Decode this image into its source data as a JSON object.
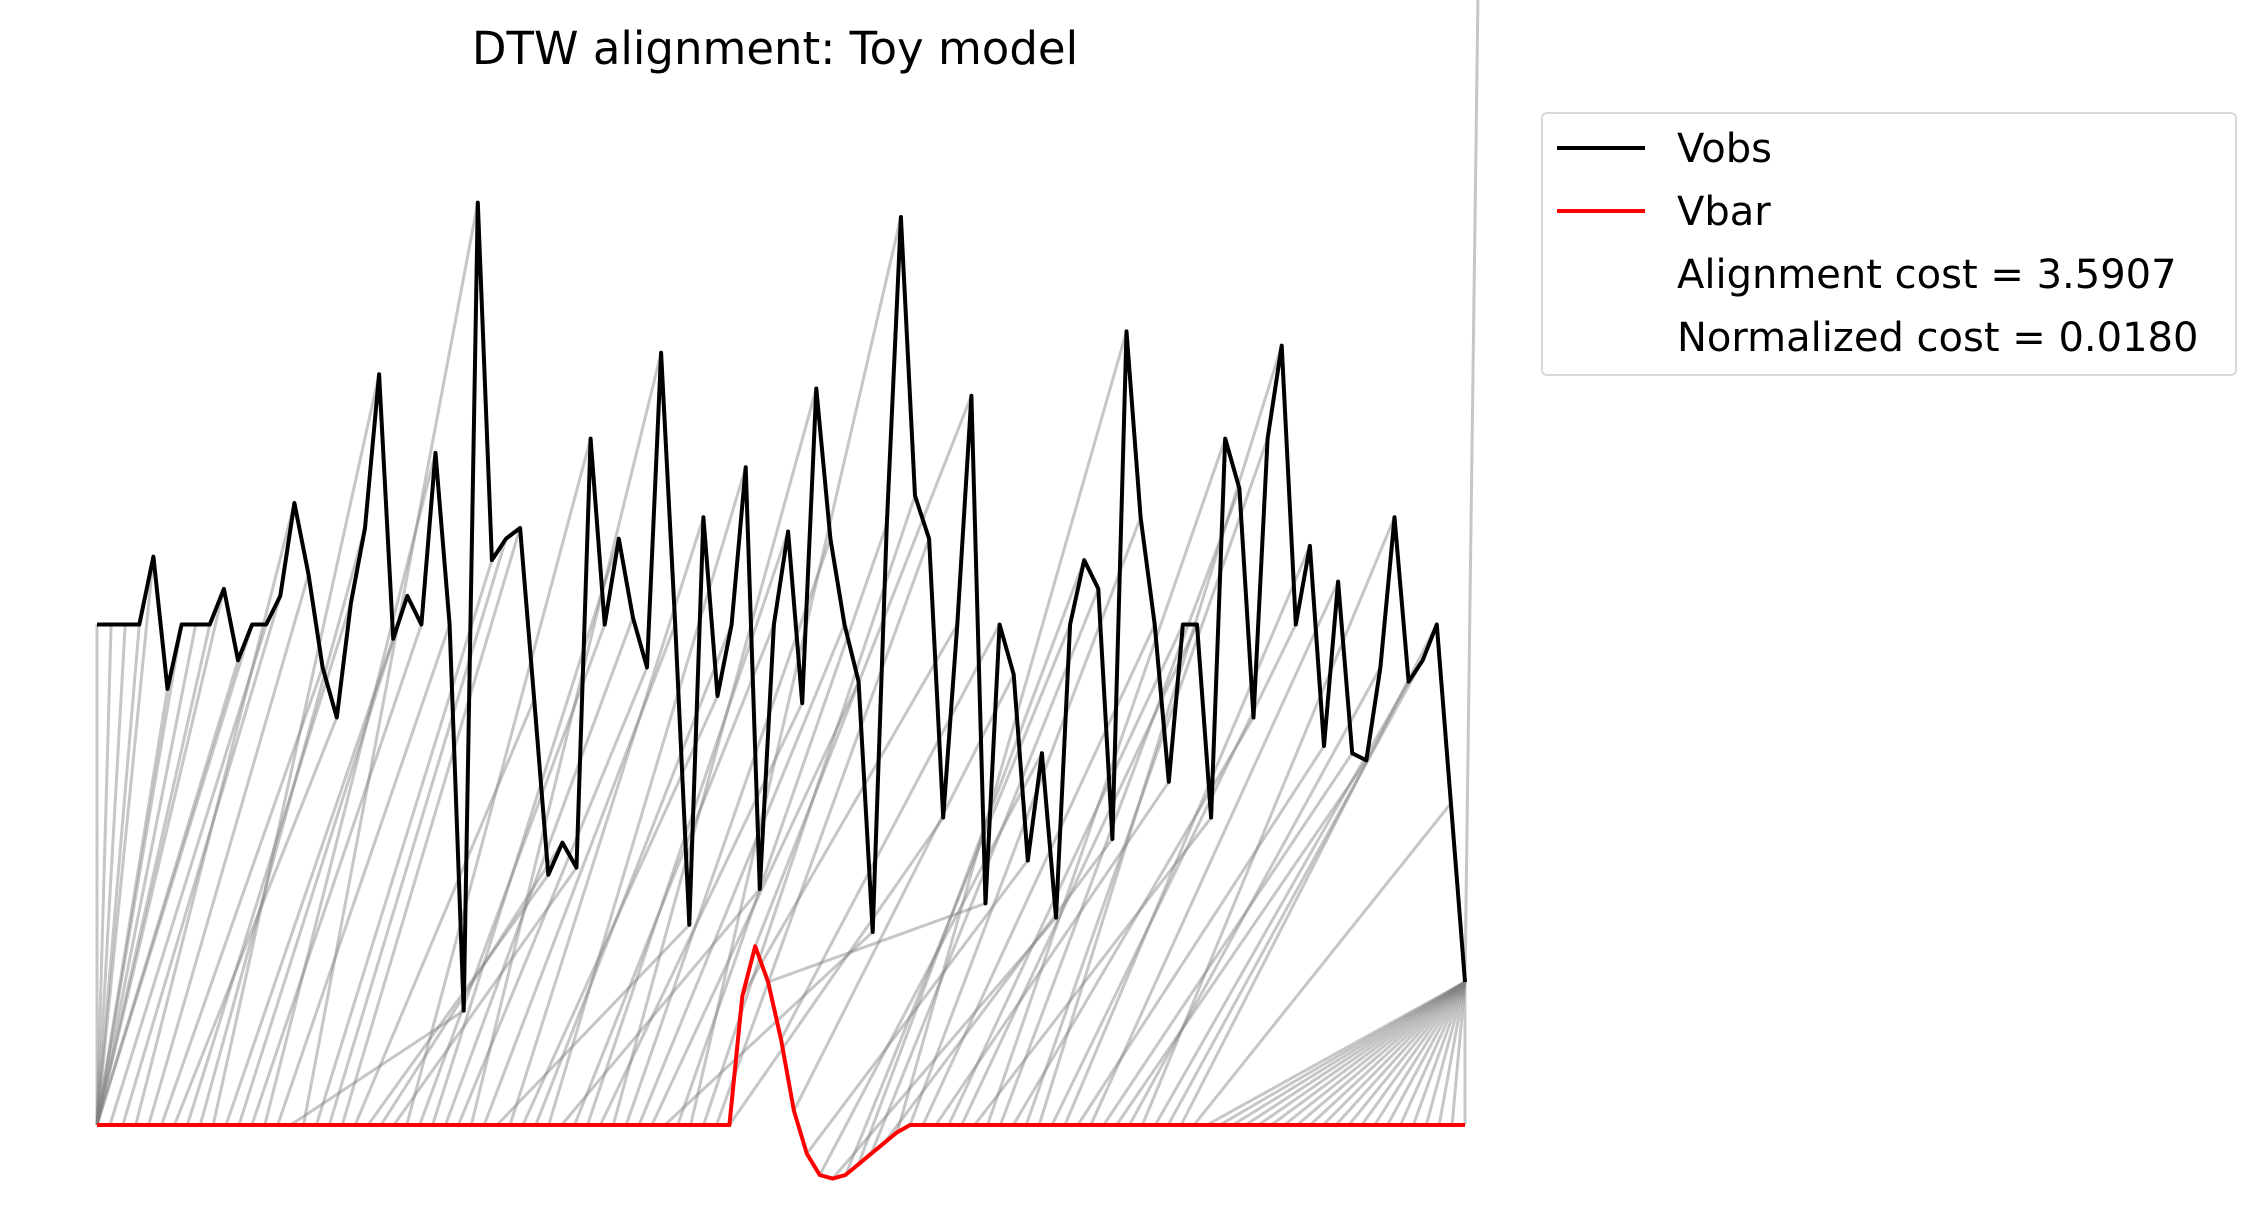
{
  "chart_data": {
    "type": "line",
    "title": "DTW alignment: Toy model",
    "xlabel": "",
    "ylabel": "",
    "axes_visible": false,
    "grid": false,
    "legend_placement": "outside top-right",
    "series": [
      {
        "name": "Vobs",
        "color": "#000000",
        "offset": 7,
        "values": [
          0,
          0,
          0,
          0,
          0.95,
          -0.9,
          0,
          0,
          0,
          0.5,
          -0.5,
          0,
          0,
          0.4,
          1.7,
          0.7,
          -0.6,
          -1.3,
          0.3,
          1.35,
          3.5,
          -0.2,
          0.4,
          0,
          2.4,
          0,
          -5.4,
          5.9,
          0.9,
          1.2,
          1.35,
          -1.05,
          -3.5,
          -3.05,
          -3.4,
          2.6,
          0,
          1.2,
          0.1,
          -0.6,
          3.8,
          0,
          -4.2,
          1.5,
          -1,
          0,
          2.2,
          -3.7,
          0,
          1.3,
          -1.1,
          3.3,
          1.2,
          0,
          -0.8,
          -4.3,
          1.4,
          5.7,
          1.8,
          1.2,
          -2.7,
          0,
          3.2,
          -3.9,
          0,
          -0.7,
          -3.3,
          -1.8,
          -4.1,
          0,
          0.9,
          0.5,
          -3,
          4.1,
          1.5,
          0,
          -2.2,
          0,
          0,
          -2.7,
          2.6,
          1.9,
          -1.3,
          2.6,
          3.9,
          0,
          1.1,
          -1.7,
          0.6,
          -1.8,
          -1.9,
          -0.6,
          1.5,
          -0.8,
          -0.5,
          0,
          -2.5,
          -5
        ]
      },
      {
        "name": "Vbar",
        "color": "#ff0000",
        "values": [
          0,
          0,
          0,
          0,
          0,
          0,
          0,
          0,
          0,
          0,
          0,
          0,
          0,
          0,
          0,
          0,
          0,
          0,
          0,
          0,
          0,
          0,
          0,
          0,
          0,
          0,
          0,
          0,
          0,
          0,
          0,
          0,
          0,
          0,
          0,
          0,
          0,
          0,
          0,
          0,
          0,
          0,
          0,
          0,
          0,
          0,
          0,
          0,
          0,
          0,
          1.8,
          2.5,
          2.0,
          1.2,
          0.2,
          -0.4,
          -0.7,
          -0.75,
          -0.7,
          -0.55,
          -0.4,
          -0.25,
          -0.1,
          0,
          0,
          0,
          0,
          0,
          0,
          0,
          0,
          0,
          0,
          0,
          0,
          0,
          0,
          0,
          0,
          0,
          0,
          0,
          0,
          0,
          0,
          0,
          0,
          0,
          0,
          0,
          0,
          0,
          0,
          0,
          0,
          0,
          0,
          0,
          0,
          0,
          0,
          0,
          0,
          0,
          0,
          0,
          0
        ]
      }
    ],
    "alignment": {
      "color": "#808080",
      "pairs": [
        [
          0,
          0
        ],
        [
          1,
          0
        ],
        [
          2,
          0
        ],
        [
          3,
          0
        ],
        [
          4,
          0
        ],
        [
          5,
          0
        ],
        [
          6,
          0
        ],
        [
          7,
          0
        ],
        [
          8,
          0
        ],
        [
          9,
          0
        ],
        [
          10,
          0
        ],
        [
          11,
          0
        ],
        [
          12,
          1
        ],
        [
          13,
          2
        ],
        [
          14,
          3
        ],
        [
          15,
          4
        ],
        [
          16,
          5
        ],
        [
          17,
          6
        ],
        [
          18,
          7
        ],
        [
          19,
          8
        ],
        [
          20,
          9
        ],
        [
          21,
          10
        ],
        [
          22,
          11
        ],
        [
          23,
          12
        ],
        [
          24,
          13
        ],
        [
          25,
          14
        ],
        [
          26,
          15
        ],
        [
          27,
          16
        ],
        [
          28,
          17
        ],
        [
          29,
          18
        ],
        [
          30,
          19
        ],
        [
          31,
          20
        ],
        [
          32,
          21
        ],
        [
          33,
          22
        ],
        [
          34,
          23
        ],
        [
          35,
          24
        ],
        [
          36,
          25
        ],
        [
          37,
          26
        ],
        [
          38,
          27
        ],
        [
          39,
          28
        ],
        [
          40,
          29
        ],
        [
          41,
          30
        ],
        [
          42,
          31
        ],
        [
          43,
          32
        ],
        [
          44,
          33
        ],
        [
          45,
          34
        ],
        [
          46,
          35
        ],
        [
          47,
          36
        ],
        [
          48,
          37
        ],
        [
          49,
          38
        ],
        [
          50,
          39
        ],
        [
          51,
          40
        ],
        [
          52,
          41
        ],
        [
          53,
          42
        ],
        [
          54,
          43
        ],
        [
          55,
          44
        ],
        [
          56,
          45
        ],
        [
          57,
          46
        ],
        [
          58,
          47
        ],
        [
          59,
          48
        ],
        [
          60,
          49
        ],
        [
          61,
          50
        ],
        [
          62,
          51
        ],
        [
          63,
          52
        ],
        [
          64,
          53
        ],
        [
          65,
          54
        ],
        [
          66,
          55
        ],
        [
          67,
          56
        ],
        [
          68,
          57
        ],
        [
          69,
          58
        ],
        [
          70,
          59
        ],
        [
          71,
          60
        ],
        [
          72,
          61
        ],
        [
          73,
          62
        ],
        [
          74,
          63
        ],
        [
          75,
          64
        ],
        [
          76,
          65
        ],
        [
          77,
          66
        ],
        [
          78,
          67
        ],
        [
          79,
          68
        ],
        [
          80,
          69
        ],
        [
          81,
          70
        ],
        [
          82,
          71
        ],
        [
          83,
          72
        ],
        [
          84,
          73
        ],
        [
          85,
          74
        ],
        [
          86,
          75
        ],
        [
          87,
          76
        ],
        [
          88,
          77
        ],
        [
          89,
          78
        ],
        [
          90,
          79
        ],
        [
          91,
          80
        ],
        [
          92,
          81
        ],
        [
          93,
          82
        ],
        [
          94,
          83
        ],
        [
          95,
          84
        ],
        [
          96,
          85
        ],
        [
          97,
          86
        ],
        [
          97,
          87
        ],
        [
          97,
          88
        ],
        [
          97,
          89
        ],
        [
          97,
          90
        ],
        [
          97,
          91
        ],
        [
          97,
          92
        ],
        [
          97,
          93
        ],
        [
          97,
          94
        ],
        [
          97,
          95
        ],
        [
          97,
          96
        ],
        [
          97,
          97
        ],
        [
          97,
          98
        ],
        [
          97,
          99
        ],
        [
          97,
          100
        ],
        [
          97,
          101
        ],
        [
          97,
          102
        ],
        [
          97,
          103
        ],
        [
          97,
          104
        ],
        [
          97,
          105
        ],
        [
          97,
          106
        ],
        [
          97,
          107
        ]
      ]
    }
  },
  "legend": {
    "vobs_label": "Vobs",
    "vbar_label": "Vbar",
    "cost_text": "Alignment cost = 3.5907",
    "norm_text": "Normalized cost = 0.0180"
  }
}
